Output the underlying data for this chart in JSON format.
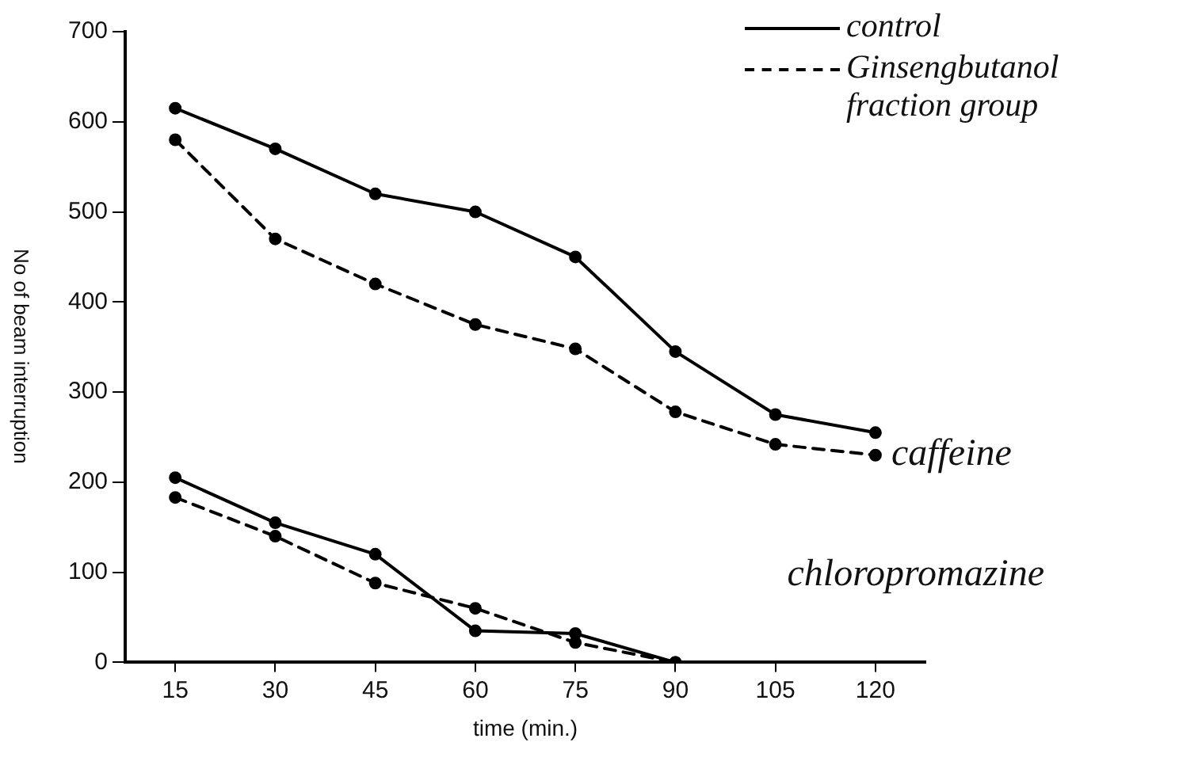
{
  "chart_data": {
    "type": "line",
    "xlabel": "time (min.)",
    "ylabel": "No of beam interruption",
    "categories": [
      "15",
      "30",
      "45",
      "60",
      "75",
      "90",
      "105",
      "120"
    ],
    "ylim": [
      0,
      700
    ],
    "yticks": [
      0,
      100,
      200,
      300,
      400,
      500,
      600,
      700
    ],
    "legend": "top right",
    "marker": "circle",
    "series": [
      {
        "name": "control",
        "color": "#000000",
        "line_style": "solid",
        "values": [
          615,
          570,
          520,
          500,
          450,
          345,
          275,
          255
        ]
      },
      {
        "name": "Ginsengbutanol fraction group",
        "color": "#000000",
        "line_style": "dashed",
        "values": [
          580,
          470,
          420,
          375,
          348,
          278,
          242,
          230
        ]
      },
      {
        "color": "#000000",
        "line_style": "solid",
        "values": [
          205,
          155,
          120,
          35,
          32,
          0,
          null,
          null
        ]
      },
      {
        "color": "#000000",
        "line_style": "dashed",
        "values": [
          183,
          140,
          88,
          60,
          22,
          0,
          null,
          null
        ]
      }
    ],
    "annotations": [
      {
        "text": "caffeine",
        "x": "120",
        "y": 230
      },
      "chloropromazine"
    ]
  }
}
